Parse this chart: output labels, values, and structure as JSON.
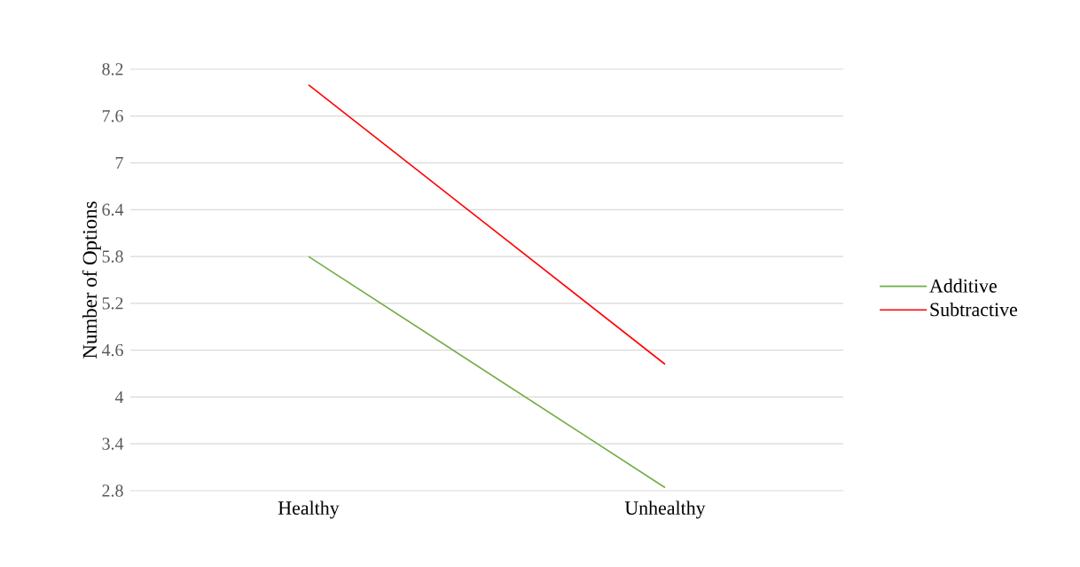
{
  "chart_data": {
    "type": "line",
    "ylabel": "Number of Options",
    "categories": [
      "Healthy",
      "Unhealthy"
    ],
    "series": [
      {
        "name": "Additive",
        "color": "#70ad47",
        "values": [
          5.8,
          2.84
        ]
      },
      {
        "name": "Subtractive",
        "color": "#ff0000",
        "values": [
          8.0,
          4.42
        ]
      }
    ],
    "ylim": [
      2.8,
      8.2
    ],
    "yticks": [
      2.8,
      3.4,
      4,
      4.6,
      5.2,
      5.8,
      6.4,
      7,
      7.6,
      8.2
    ],
    "grid": "y",
    "legend": "right",
    "marker": "none",
    "line_style": "solid"
  }
}
